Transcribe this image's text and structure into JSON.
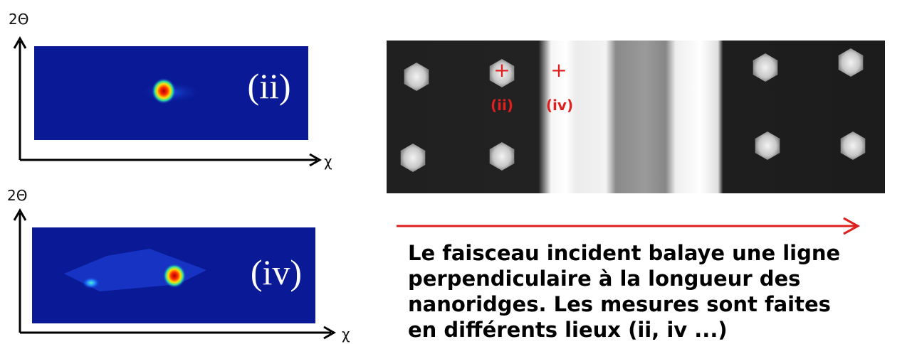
{
  "panels": [
    {
      "y_axis_label": "2Θ",
      "x_axis_label": "χ",
      "map_label": "(ii)"
    },
    {
      "y_axis_label": "2Θ",
      "x_axis_label": "χ",
      "map_label": "(iv)"
    }
  ],
  "sem_image": {
    "markers": [
      {
        "symbol": "+",
        "label": "(ii)"
      },
      {
        "symbol": "+",
        "label": "(iv)"
      }
    ]
  },
  "caption": {
    "lines": [
      "Le faisceau incident balaye une ligne",
      "perpendiculaire à la longueur des",
      "nanoridges. Les mesures sont faites",
      "en différents lieux (ii, iv ...)"
    ]
  }
}
